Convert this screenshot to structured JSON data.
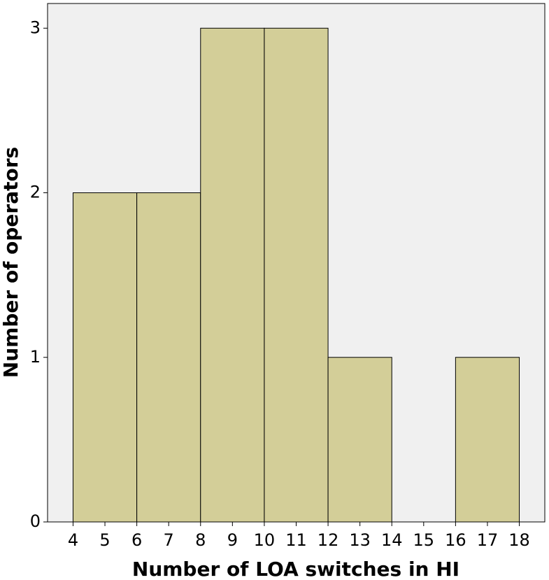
{
  "chart_data": {
    "type": "histogram",
    "x_label": "Number of LOA switches in HI",
    "y_label": "Number of operators",
    "bins": [
      4,
      6,
      8,
      10,
      12,
      14,
      16,
      18
    ],
    "values": [
      2,
      2,
      3,
      3,
      1,
      0,
      1
    ],
    "color": "#d3ce98",
    "xlim": [
      3.2,
      18.8
    ],
    "xticks": [
      4,
      5,
      6,
      7,
      8,
      9,
      10,
      11,
      12,
      13,
      14,
      15,
      16,
      17,
      18
    ],
    "ylim": [
      0,
      3.15
    ],
    "yticks": [
      0,
      1,
      2,
      3
    ]
  }
}
